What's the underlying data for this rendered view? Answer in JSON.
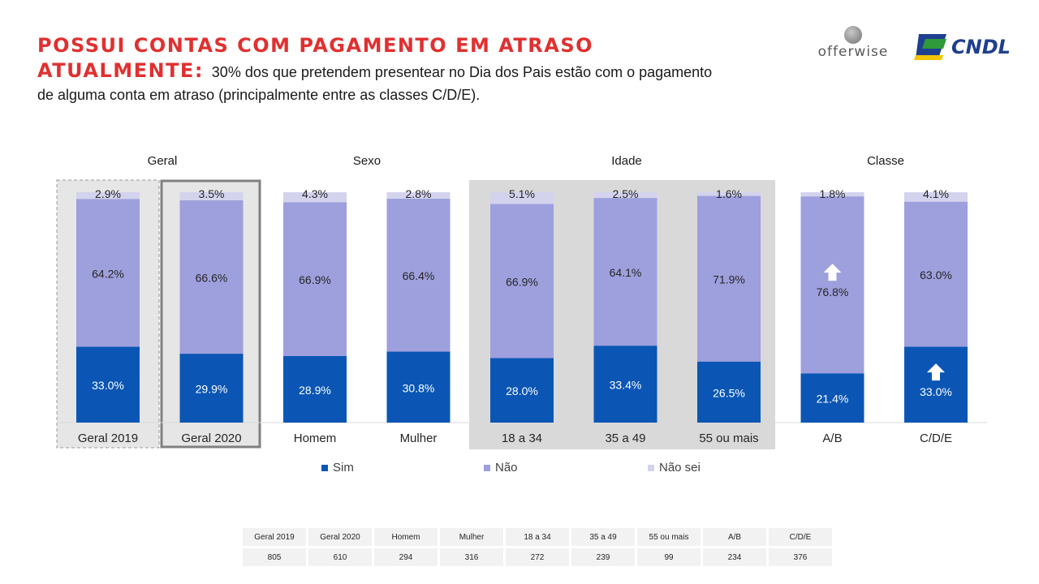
{
  "header": {
    "title_line1": "POSSUI CONTAS COM PAGAMENTO EM ATRASO",
    "title_line2_bold": "ATUALMENTE:",
    "title_line2_rest": "30% dos que pretendem presentear no Dia dos Pais estão com o pagamento",
    "title_line3": "de alguma conta em atraso (principalmente entre as classes C/D/E)."
  },
  "logos": {
    "offerwise": "offerwise",
    "cndl": "CNDL"
  },
  "colors": {
    "sim": "#0b56b4",
    "nao": "#9e9fdd",
    "nao_sei": "#d3d3ee",
    "highlight_bg": "#d9d9d9",
    "title": "#e03030"
  },
  "groups": {
    "geral": "Geral",
    "sexo": "Sexo",
    "idade": "Idade",
    "classe": "Classe"
  },
  "chart_data": {
    "type": "bar",
    "stacked": true,
    "categories": [
      "Geral 2019",
      "Geral 2020",
      "Homem",
      "Mulher",
      "18 a 34",
      "35 a 49",
      "55 ou mais",
      "A/B",
      "C/D/E"
    ],
    "series": [
      {
        "name": "Sim",
        "values": [
          33.0,
          29.9,
          28.9,
          30.8,
          28.0,
          33.4,
          26.5,
          21.4,
          33.0
        ]
      },
      {
        "name": "Não",
        "values": [
          64.2,
          66.6,
          66.9,
          66.4,
          66.9,
          64.1,
          71.9,
          76.8,
          63.0
        ]
      },
      {
        "name": "Não sei",
        "values": [
          2.9,
          3.5,
          4.3,
          2.8,
          5.1,
          2.5,
          1.6,
          1.8,
          4.1
        ]
      }
    ],
    "labels": {
      "sim": [
        "33.0%",
        "29.9%",
        "28.9%",
        "30.8%",
        "28.0%",
        "33.4%",
        "26.5%",
        "21.4%",
        "33.0%"
      ],
      "nao": [
        "64.2%",
        "66.6%",
        "66.9%",
        "66.4%",
        "66.9%",
        "64.1%",
        "71.9%",
        "76.8%",
        "63.0%"
      ],
      "nao_sei": [
        "2.9%",
        "3.5%",
        "4.3%",
        "2.8%",
        "5.1%",
        "2.5%",
        "1.6%",
        "1.8%",
        "4.1%"
      ]
    },
    "highlights": [
      {
        "category": "A/B",
        "series": "Não",
        "marker": "up-arrow"
      },
      {
        "category": "C/D/E",
        "series": "Sim",
        "marker": "up-arrow"
      }
    ],
    "ylim": [
      0,
      100
    ],
    "title": "",
    "xlabel": "",
    "ylabel": "",
    "legend": [
      "Sim",
      "Não",
      "Não sei"
    ]
  },
  "base_table": {
    "headers": [
      "Geral 2019",
      "Geral 2020",
      "Homem",
      "Mulher",
      "18 a 34",
      "35 a 49",
      "55 ou mais",
      "A/B",
      "C/D/E"
    ],
    "values": [
      "805",
      "610",
      "294",
      "316",
      "272",
      "239",
      "99",
      "234",
      "376"
    ]
  }
}
